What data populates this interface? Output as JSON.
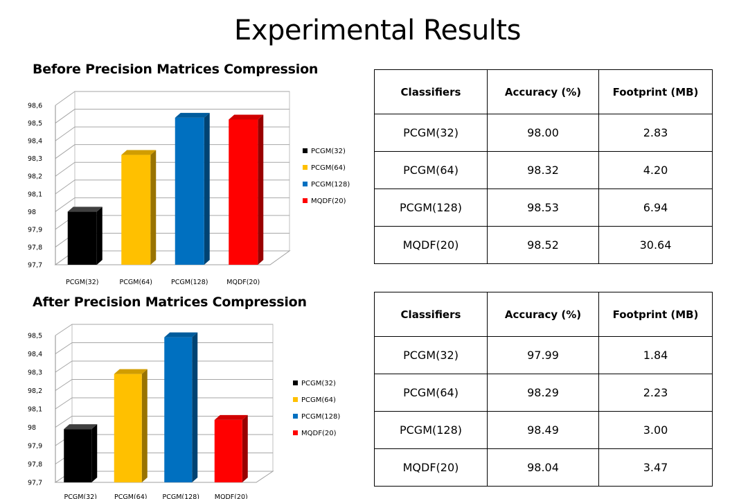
{
  "page_title": "Experimental Results",
  "colors": {
    "black": "#000000",
    "yellow": "#ffc000",
    "blue": "#0070c0",
    "red": "#ff0000"
  },
  "sections": [
    {
      "title": "Before Precision Matrices Compression",
      "table": {
        "headers": [
          "Classifiers",
          "Accuracy (%)",
          "Footprint (MB)"
        ],
        "rows": [
          [
            "PCGM(32)",
            "98.00",
            "2.83"
          ],
          [
            "PCGM(64)",
            "98.32",
            "4.20"
          ],
          [
            "PCGM(128)",
            "98.53",
            "6.94"
          ],
          [
            "MQDF(20)",
            "98.52",
            "30.64"
          ]
        ]
      }
    },
    {
      "title": "After Precision Matrices Compression",
      "table": {
        "headers": [
          "Classifiers",
          "Accuracy (%)",
          "Footprint (MB)"
        ],
        "rows": [
          [
            "PCGM(32)",
            "97.99",
            "1.84"
          ],
          [
            "PCGM(64)",
            "98.29",
            "2.23"
          ],
          [
            "PCGM(128)",
            "98.49",
            "3.00"
          ],
          [
            "MQDF(20)",
            "98.04",
            "3.47"
          ]
        ]
      }
    }
  ],
  "chart_data": [
    {
      "type": "bar",
      "title": "Before Precision Matrices Compression",
      "categories": [
        "PCGM(32)",
        "PCGM(64)",
        "PCGM(128)",
        "MQDF(20)"
      ],
      "values": [
        98.0,
        98.32,
        98.53,
        98.52
      ],
      "colors": [
        "#000000",
        "#ffc000",
        "#0070c0",
        "#ff0000"
      ],
      "ylim": [
        97.7,
        98.6
      ],
      "yticks": [
        "97,7",
        "97,8",
        "97,9",
        "98",
        "98,1",
        "98,2",
        "98,3",
        "98,4",
        "98,5",
        "98,6"
      ],
      "legend": [
        "PCGM(32)",
        "PCGM(64)",
        "PCGM(128)",
        "MQDF(20)"
      ],
      "legend_position": "right",
      "grid": true,
      "style": "3d"
    },
    {
      "type": "bar",
      "title": "After Precision Matrices Compression",
      "categories": [
        "PCGM(32)",
        "PCGM(64)",
        "PCGM(128)",
        "MQDF(20)"
      ],
      "values": [
        97.99,
        98.29,
        98.49,
        98.04
      ],
      "colors": [
        "#000000",
        "#ffc000",
        "#0070c0",
        "#ff0000"
      ],
      "ylim": [
        97.7,
        98.5
      ],
      "yticks": [
        "97,7",
        "97,8",
        "97,9",
        "98",
        "98,1",
        "98,2",
        "98,3",
        "98,4",
        "98,5"
      ],
      "legend": [
        "PCGM(32)",
        "PCGM(64)",
        "PCGM(128)",
        "MQDF(20)"
      ],
      "legend_position": "right",
      "grid": true,
      "style": "3d"
    }
  ]
}
